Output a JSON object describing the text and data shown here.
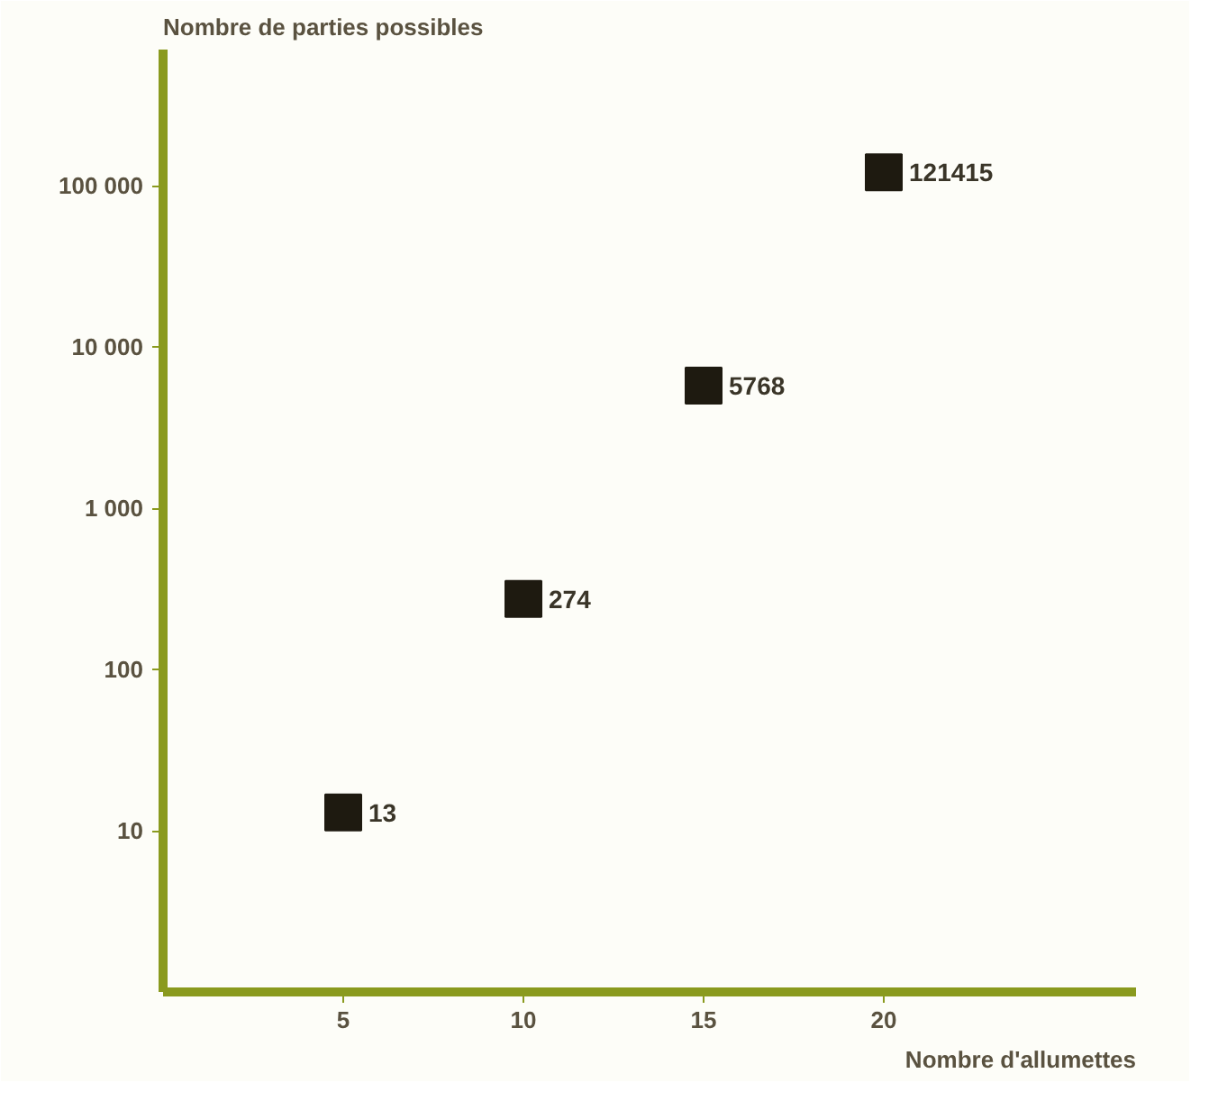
{
  "chart_data": {
    "type": "scatter",
    "xlabel": "Nombre d'allumettes",
    "ylabel": "Nombre de parties possibles",
    "x": [
      5,
      10,
      15,
      20
    ],
    "series": [
      {
        "color": "#1e1a10",
        "values": [
          13,
          274,
          5768,
          121415
        ]
      }
    ],
    "data_labels": true,
    "marker": "square",
    "log": "y",
    "grid": false,
    "xlim": [
      0,
      27
    ],
    "xticks": [
      5,
      10,
      15,
      20
    ],
    "ylim": [
      1,
      700000
    ],
    "yticks": [
      10,
      100,
      {
        "value": 1000,
        "label": "1 000"
      },
      {
        "value": 10000,
        "label": "10 000"
      },
      {
        "value": 100000,
        "label": "100 000"
      }
    ]
  }
}
